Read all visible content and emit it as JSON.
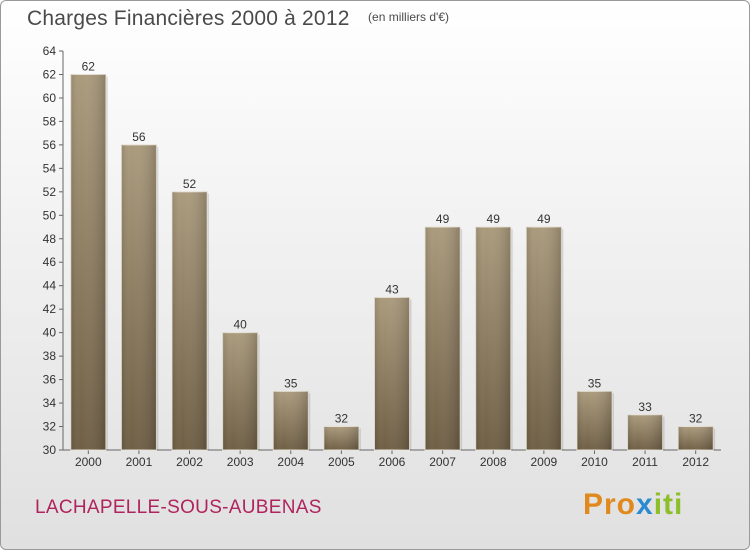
{
  "title": "Charges Financières 2000 à 2012",
  "unit_note": "(en milliers d'€)",
  "commune": "LACHAPELLE-SOUS-AUBENAS",
  "logo": {
    "part1": "Pro",
    "part2": "x",
    "part3": "iti"
  },
  "colors": {
    "bar": "#8f7e65",
    "bar_light": "#a89878",
    "title": "#4a4a4a",
    "commune": "#b0245e"
  },
  "chart_data": {
    "type": "bar",
    "categories": [
      "2000",
      "2001",
      "2002",
      "2003",
      "2004",
      "2005",
      "2006",
      "2007",
      "2008",
      "2009",
      "2010",
      "2011",
      "2012"
    ],
    "values": [
      62,
      56,
      52,
      40,
      35,
      32,
      43,
      49,
      49,
      49,
      35,
      33,
      32
    ],
    "ylim": [
      30,
      64
    ],
    "yticks": [
      30,
      32,
      34,
      36,
      38,
      40,
      42,
      44,
      46,
      48,
      50,
      52,
      54,
      56,
      58,
      60,
      62,
      64
    ],
    "grid": false,
    "data_labels": true
  }
}
